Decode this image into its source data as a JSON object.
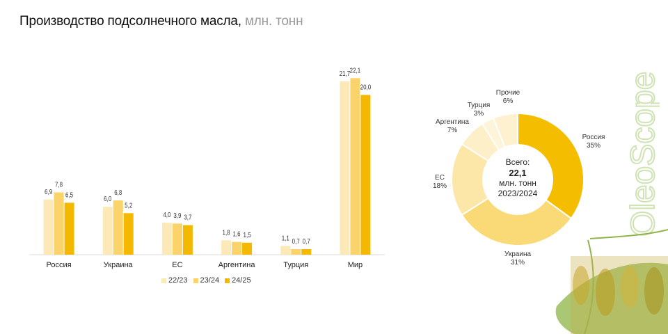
{
  "title": {
    "main": "Производство подсолнечного масла,",
    "unit": "млн. тонн"
  },
  "chart_data": [
    {
      "type": "bar",
      "title": "Производство подсолнечного масла, млн. тонн",
      "categories": [
        "Россия",
        "Украина",
        "ЕС",
        "Аргентина",
        "Турция",
        "Мир"
      ],
      "series": [
        {
          "name": "22/23",
          "color": "#FDE9B8",
          "values": [
            6.9,
            6.0,
            4.0,
            1.8,
            1.1,
            21.7
          ],
          "labels": [
            "6,9",
            "6,0",
            "4,0",
            "1,8",
            "1,1",
            "21,7"
          ]
        },
        {
          "name": "23/24",
          "color": "#FAD36B",
          "values": [
            7.8,
            6.8,
            3.9,
            1.6,
            0.7,
            22.1
          ],
          "labels": [
            "7,8",
            "6,8",
            "3,9",
            "1,6",
            "0,7",
            "22,1"
          ]
        },
        {
          "name": "24/25",
          "color": "#F5B800",
          "values": [
            6.5,
            5.2,
            3.7,
            1.5,
            0.7,
            20.0
          ],
          "labels": [
            "6,5",
            "5,2",
            "3,7",
            "1,5",
            "0,7",
            "20,0"
          ]
        }
      ],
      "ylim": [
        0,
        25
      ],
      "grid": false,
      "legend": "bottom"
    },
    {
      "type": "pie",
      "center": {
        "line1": "Всего:",
        "line2": "22,1",
        "line3": "млн. тонн",
        "line4": "2023/2024"
      },
      "slices": [
        {
          "name": "Россия",
          "value": 35,
          "label": "35%",
          "color": "#F5BD00"
        },
        {
          "name": "Украина",
          "value": 31,
          "label": "31%",
          "color": "#FADA77"
        },
        {
          "name": "ЕС",
          "value": 18,
          "label": "18%",
          "color": "#FCE6A8"
        },
        {
          "name": "Аргентина",
          "value": 7,
          "label": "7%",
          "color": "#FDEFC7"
        },
        {
          "name": "Турция",
          "value": 3,
          "label": "3%",
          "color": "#FEF4DA"
        },
        {
          "name": "Прочие",
          "value": 6,
          "label": "6%",
          "color": "#FEF1D0"
        }
      ]
    }
  ],
  "brand": {
    "name": "OleoScope"
  }
}
